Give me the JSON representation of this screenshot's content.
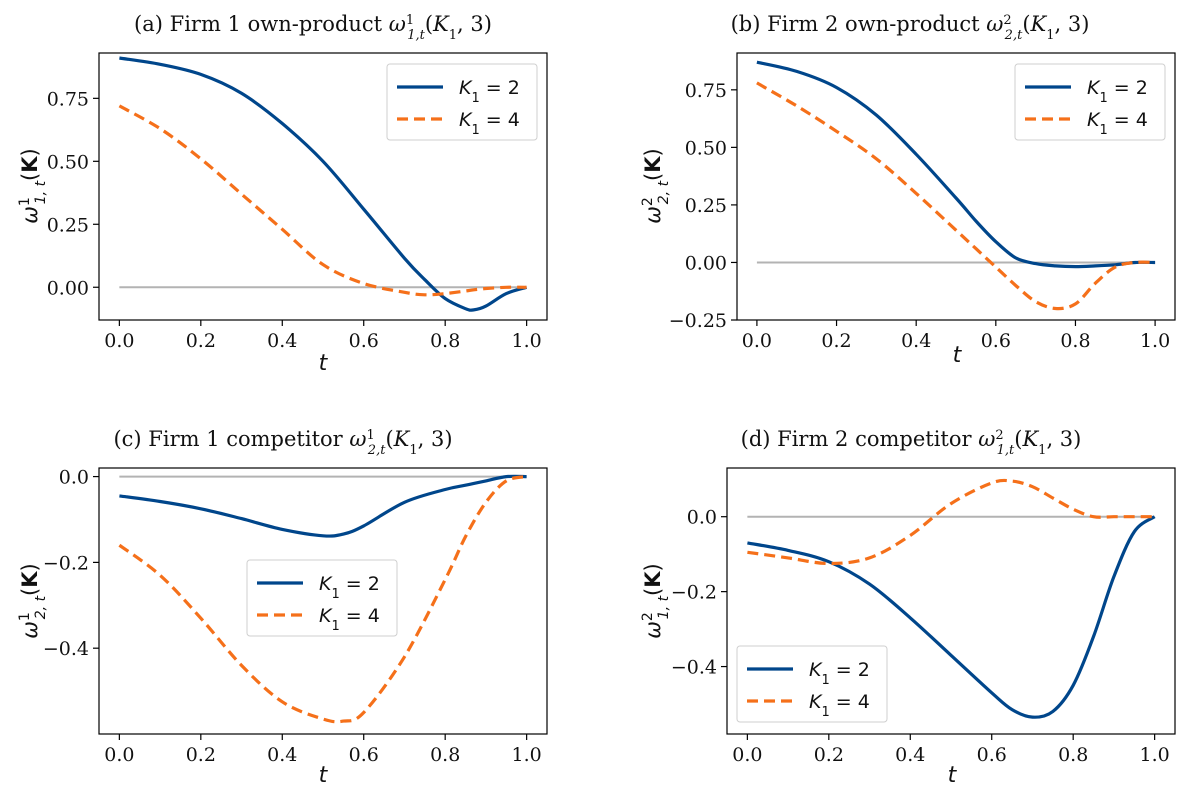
{
  "colors": {
    "series_1": "#00468b",
    "series_2": "#f5701a",
    "zero_line": "#b3b3b3"
  },
  "legend_labels": [
    "K1 = 2",
    "K1 = 4"
  ],
  "chart_data": [
    {
      "type": "line",
      "title": "(a) Firm 1 own-product ω¹₁,ₜ(K₁,3)",
      "xlabel": "t",
      "ylabel": "ω¹₁,ₜ(K)",
      "xlim": [
        -0.05,
        1.05
      ],
      "ylim": [
        -0.13,
        0.93
      ],
      "xticks": [
        "0.0",
        "0.2",
        "0.4",
        "0.6",
        "0.8",
        "1.0"
      ],
      "yticks": [
        "0.00",
        "0.25",
        "0.50",
        "0.75"
      ],
      "legend": "top-right",
      "x": [
        0.0,
        0.1,
        0.2,
        0.3,
        0.4,
        0.5,
        0.6,
        0.7,
        0.75,
        0.8,
        0.85,
        0.87,
        0.9,
        0.95,
        1.0
      ],
      "series": [
        {
          "name": "K1 = 2",
          "style": "solid",
          "values": [
            0.91,
            0.885,
            0.845,
            0.77,
            0.65,
            0.5,
            0.31,
            0.115,
            0.03,
            -0.045,
            -0.085,
            -0.09,
            -0.075,
            -0.025,
            0.0
          ]
        },
        {
          "name": "K1 = 4",
          "style": "dashed",
          "values": [
            0.72,
            0.63,
            0.51,
            0.37,
            0.23,
            0.09,
            0.015,
            -0.02,
            -0.03,
            -0.025,
            -0.015,
            -0.01,
            -0.005,
            0.0,
            0.0
          ]
        }
      ]
    },
    {
      "type": "line",
      "title": "(b) Firm 2 own-product ω²₂,ₜ(K₁,3)",
      "xlabel": "t",
      "ylabel": "ω²₂,ₜ(K)",
      "xlim": [
        -0.05,
        1.05
      ],
      "ylim": [
        -0.25,
        0.91
      ],
      "xticks": [
        "0.0",
        "0.2",
        "0.4",
        "0.6",
        "0.8",
        "1.0"
      ],
      "yticks": [
        "−0.25",
        "0.00",
        "0.25",
        "0.50",
        "0.75"
      ],
      "legend": "top-right",
      "x": [
        0.0,
        0.1,
        0.2,
        0.3,
        0.4,
        0.5,
        0.55,
        0.6,
        0.65,
        0.7,
        0.75,
        0.8,
        0.85,
        0.9,
        0.95,
        1.0
      ],
      "series": [
        {
          "name": "K1 = 2",
          "style": "solid",
          "values": [
            0.87,
            0.83,
            0.76,
            0.64,
            0.47,
            0.28,
            0.18,
            0.09,
            0.02,
            -0.005,
            -0.015,
            -0.018,
            -0.015,
            -0.01,
            0.0,
            0.0
          ]
        },
        {
          "name": "K1 = 4",
          "style": "dashed",
          "values": [
            0.78,
            0.68,
            0.57,
            0.45,
            0.3,
            0.14,
            0.06,
            -0.02,
            -0.1,
            -0.17,
            -0.2,
            -0.18,
            -0.09,
            -0.02,
            0.0,
            0.0
          ]
        }
      ]
    },
    {
      "type": "line",
      "title": "(c) Firm 1 competitor ω¹₂,ₜ(K₁,3)",
      "xlabel": "t",
      "ylabel": "ω¹₂,ₜ(K)",
      "xlim": [
        -0.05,
        1.05
      ],
      "ylim": [
        -0.6,
        0.02
      ],
      "xticks": [
        "0.0",
        "0.2",
        "0.4",
        "0.6",
        "0.8",
        "1.0"
      ],
      "yticks": [
        "0.0",
        "−0.2",
        "−0.4"
      ],
      "ytick_values": [
        0.0,
        -0.2,
        -0.4
      ],
      "legend": "center",
      "x": [
        0.0,
        0.1,
        0.2,
        0.3,
        0.4,
        0.5,
        0.55,
        0.6,
        0.7,
        0.8,
        0.85,
        0.9,
        0.95,
        1.0
      ],
      "series": [
        {
          "name": "K1 = 2",
          "style": "solid",
          "values": [
            -0.045,
            -0.058,
            -0.075,
            -0.098,
            -0.123,
            -0.138,
            -0.134,
            -0.115,
            -0.06,
            -0.03,
            -0.02,
            -0.01,
            0.0,
            0.0
          ]
        },
        {
          "name": "K1 = 4",
          "style": "dashed",
          "values": [
            -0.16,
            -0.23,
            -0.33,
            -0.44,
            -0.525,
            -0.565,
            -0.57,
            -0.55,
            -0.42,
            -0.24,
            -0.14,
            -0.06,
            -0.01,
            0.0
          ]
        }
      ]
    },
    {
      "type": "line",
      "title": "(d) Firm 2 competitor ω²₁,ₜ(K₁,3)",
      "xlabel": "t",
      "ylabel": "ω²₁,ₜ(K)",
      "xlim": [
        -0.05,
        1.05
      ],
      "ylim": [
        -0.58,
        0.13
      ],
      "xticks": [
        "0.0",
        "0.2",
        "0.4",
        "0.6",
        "0.8",
        "1.0"
      ],
      "yticks": [
        "0.0",
        "−0.2",
        "−0.4"
      ],
      "ytick_values": [
        0.0,
        -0.2,
        -0.4
      ],
      "legend": "bottom-left",
      "x": [
        0.0,
        0.1,
        0.2,
        0.3,
        0.4,
        0.5,
        0.6,
        0.65,
        0.7,
        0.75,
        0.8,
        0.85,
        0.9,
        0.95,
        1.0
      ],
      "series": [
        {
          "name": "K1 = 2",
          "style": "solid",
          "values": [
            -0.07,
            -0.09,
            -0.12,
            -0.18,
            -0.27,
            -0.37,
            -0.47,
            -0.515,
            -0.535,
            -0.52,
            -0.45,
            -0.32,
            -0.16,
            -0.04,
            0.0
          ]
        },
        {
          "name": "K1 = 4",
          "style": "dashed",
          "values": [
            -0.095,
            -0.11,
            -0.125,
            -0.11,
            -0.05,
            0.035,
            0.09,
            0.095,
            0.08,
            0.05,
            0.02,
            0.0,
            0.0,
            0.0,
            0.0
          ]
        }
      ]
    }
  ]
}
